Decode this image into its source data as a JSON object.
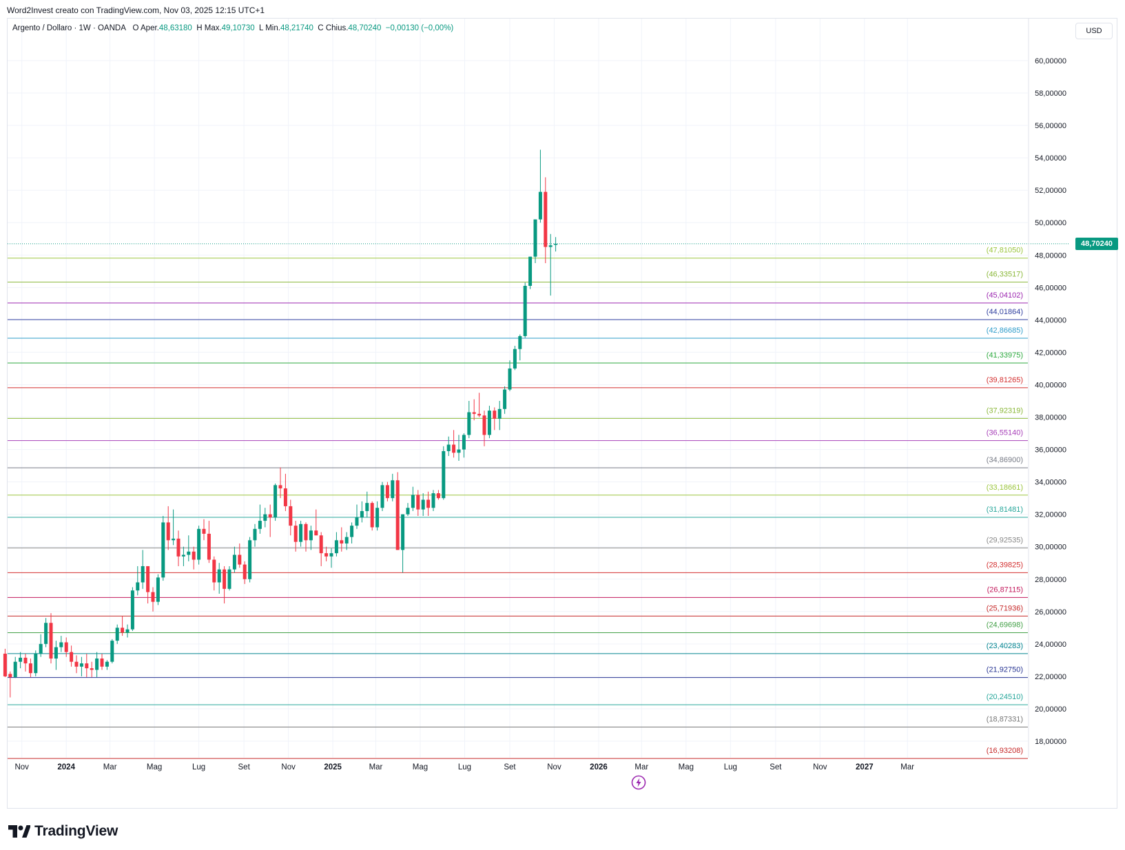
{
  "header": {
    "credit": "Word2Invest creato con TradingView.com, Nov 03, 2025 12:15 UTC+1"
  },
  "legend": {
    "symbol": "Argento / Dollaro · 1W · OANDA",
    "open_label": "O",
    "open_prefix": "Aper.",
    "open_value": "48,63180",
    "high_label": "H",
    "high_prefix": "Max.",
    "high_value": "49,10730",
    "low_label": "L",
    "low_prefix": "Min.",
    "low_value": "48,21740",
    "close_label": "C",
    "close_prefix": "Chius.",
    "close_value": "48,70240",
    "change": "−0,00130 (−0,00%)"
  },
  "price_axis": {
    "currency": "USD",
    "last_price": "48,70240",
    "last_price_color": "#089981"
  },
  "footer": {
    "brand": "TradingView"
  },
  "colors": {
    "up": "#089981",
    "down": "#f23645",
    "grid": "#f0f3fa"
  },
  "chart_data": {
    "type": "candlestick",
    "symbol": "Argento / Dollaro",
    "interval": "1W",
    "ylim": [
      16.8,
      62.0
    ],
    "y_ticks": [
      {
        "value": 18,
        "label": "18,00000"
      },
      {
        "value": 20,
        "label": "20,00000"
      },
      {
        "value": 22,
        "label": "22,00000"
      },
      {
        "value": 24,
        "label": "24,00000"
      },
      {
        "value": 26,
        "label": "26,00000"
      },
      {
        "value": 28,
        "label": "28,00000"
      },
      {
        "value": 30,
        "label": "30,00000"
      },
      {
        "value": 32,
        "label": "32,00000"
      },
      {
        "value": 34,
        "label": "34,00000"
      },
      {
        "value": 36,
        "label": "36,00000"
      },
      {
        "value": 38,
        "label": "38,00000"
      },
      {
        "value": 40,
        "label": "40,00000"
      },
      {
        "value": 42,
        "label": "42,00000"
      },
      {
        "value": 44,
        "label": "44,00000"
      },
      {
        "value": 46,
        "label": "46,00000"
      },
      {
        "value": 48,
        "label": "48,00000"
      },
      {
        "value": 50,
        "label": "50,00000"
      },
      {
        "value": 52,
        "label": "52,00000"
      },
      {
        "value": 54,
        "label": "54,00000"
      },
      {
        "value": 56,
        "label": "56,00000"
      },
      {
        "value": 58,
        "label": "58,00000"
      },
      {
        "value": 60,
        "label": "60,00000"
      }
    ],
    "x_labels": [
      {
        "label": "Nov",
        "date": "2023-11-01",
        "bold": false
      },
      {
        "label": "2024",
        "date": "2024-01-01",
        "bold": true
      },
      {
        "label": "Mar",
        "date": "2024-03-01",
        "bold": false
      },
      {
        "label": "Mag",
        "date": "2024-05-01",
        "bold": false
      },
      {
        "label": "Lug",
        "date": "2024-07-01",
        "bold": false
      },
      {
        "label": "Set",
        "date": "2024-09-01",
        "bold": false
      },
      {
        "label": "Nov",
        "date": "2024-11-01",
        "bold": false
      },
      {
        "label": "2025",
        "date": "2025-01-01",
        "bold": true
      },
      {
        "label": "Mar",
        "date": "2025-03-01",
        "bold": false
      },
      {
        "label": "Mag",
        "date": "2025-05-01",
        "bold": false
      },
      {
        "label": "Lug",
        "date": "2025-07-01",
        "bold": false
      },
      {
        "label": "Set",
        "date": "2025-09-01",
        "bold": false
      },
      {
        "label": "Nov",
        "date": "2025-11-01",
        "bold": false
      },
      {
        "label": "2026",
        "date": "2026-01-01",
        "bold": true
      },
      {
        "label": "Mar",
        "date": "2026-03-01",
        "bold": false
      },
      {
        "label": "Mag",
        "date": "2026-05-01",
        "bold": false
      },
      {
        "label": "Lug",
        "date": "2026-07-01",
        "bold": false
      },
      {
        "label": "Set",
        "date": "2026-09-01",
        "bold": false
      },
      {
        "label": "Nov",
        "date": "2026-11-01",
        "bold": false
      },
      {
        "label": "2027",
        "date": "2027-01-01",
        "bold": true
      },
      {
        "label": "Mar",
        "date": "2027-03-01",
        "bold": false
      }
    ],
    "horizontal_levels": [
      {
        "value": 47.8105,
        "label": "(47,81050)",
        "color": "#9bc53d"
      },
      {
        "value": 46.33517,
        "label": "(46,33517)",
        "color": "#8bb83a"
      },
      {
        "value": 45.04102,
        "label": "(45,04102)",
        "color": "#9c27b0"
      },
      {
        "value": 44.01864,
        "label": "(44,01864)",
        "color": "#303f9f"
      },
      {
        "value": 42.86685,
        "label": "(42,86685)",
        "color": "#2e9cca"
      },
      {
        "value": 41.33975,
        "label": "(41,33975)",
        "color": "#2eaa3f"
      },
      {
        "value": 39.81265,
        "label": "(39,81265)",
        "color": "#d32f2f"
      },
      {
        "value": 37.92319,
        "label": "(37,92319)",
        "color": "#8bb83a"
      },
      {
        "value": 36.5514,
        "label": "(36,55140)",
        "color": "#a740b8"
      },
      {
        "value": 34.869,
        "label": "(34,86900)",
        "color": "#777b86"
      },
      {
        "value": 33.18661,
        "label": "(33,18661)",
        "color": "#9bc53d"
      },
      {
        "value": 31.81481,
        "label": "(31,81481)",
        "color": "#26a69a"
      },
      {
        "value": 29.92535,
        "label": "(29,92535)",
        "color": "#888888"
      },
      {
        "value": 28.39825,
        "label": "(28,39825)",
        "color": "#d32f2f"
      },
      {
        "value": 26.87115,
        "label": "(26,87115)",
        "color": "#c2185b"
      },
      {
        "value": 25.71936,
        "label": "(25,71936)",
        "color": "#c62828"
      },
      {
        "value": 24.69698,
        "label": "(24,69698)",
        "color": "#43a047"
      },
      {
        "value": 23.40283,
        "label": "(23,40283)",
        "color": "#00838f"
      },
      {
        "value": 21.9275,
        "label": "(21,92750)",
        "color": "#283593"
      },
      {
        "value": 20.2451,
        "label": "(20,24510)",
        "color": "#26a69a"
      },
      {
        "value": 18.87331,
        "label": "(18,87331)",
        "color": "#777777"
      },
      {
        "value": 16.93208,
        "label": "(16,93208)",
        "color": "#c62828"
      }
    ],
    "candles": [
      {
        "date": "2023-10-09",
        "o": 23.4,
        "h": 23.7,
        "l": 21.95,
        "c": 22.0
      },
      {
        "date": "2023-10-16",
        "o": 22.15,
        "h": 22.3,
        "l": 20.7,
        "c": 21.95
      },
      {
        "date": "2023-10-23",
        "o": 21.95,
        "h": 23.2,
        "l": 21.9,
        "c": 22.9
      },
      {
        "date": "2023-10-30",
        "o": 22.9,
        "h": 23.5,
        "l": 22.5,
        "c": 23.15
      },
      {
        "date": "2023-11-06",
        "o": 23.15,
        "h": 23.4,
        "l": 22.3,
        "c": 22.8
      },
      {
        "date": "2023-11-13",
        "o": 22.8,
        "h": 23.1,
        "l": 21.95,
        "c": 22.2
      },
      {
        "date": "2023-11-20",
        "o": 22.2,
        "h": 23.6,
        "l": 22.0,
        "c": 23.4
      },
      {
        "date": "2023-11-27",
        "o": 23.4,
        "h": 24.6,
        "l": 23.2,
        "c": 24.0
      },
      {
        "date": "2023-12-04",
        "o": 24.0,
        "h": 25.6,
        "l": 23.8,
        "c": 25.3
      },
      {
        "date": "2023-12-11",
        "o": 25.3,
        "h": 25.9,
        "l": 22.8,
        "c": 23.1
      },
      {
        "date": "2023-12-18",
        "o": 23.1,
        "h": 24.2,
        "l": 22.4,
        "c": 23.8
      },
      {
        "date": "2023-12-25",
        "o": 23.8,
        "h": 24.5,
        "l": 23.5,
        "c": 24.1
      },
      {
        "date": "2024-01-01",
        "o": 24.1,
        "h": 24.4,
        "l": 23.2,
        "c": 23.5
      },
      {
        "date": "2024-01-08",
        "o": 23.5,
        "h": 23.9,
        "l": 22.6,
        "c": 22.9
      },
      {
        "date": "2024-01-15",
        "o": 22.9,
        "h": 23.3,
        "l": 22.2,
        "c": 22.6
      },
      {
        "date": "2024-01-22",
        "o": 22.6,
        "h": 23.2,
        "l": 22.0,
        "c": 22.8
      },
      {
        "date": "2024-01-29",
        "o": 22.8,
        "h": 23.4,
        "l": 21.95,
        "c": 22.5
      },
      {
        "date": "2024-02-05",
        "o": 22.5,
        "h": 22.9,
        "l": 21.95,
        "c": 22.4
      },
      {
        "date": "2024-02-12",
        "o": 22.4,
        "h": 23.5,
        "l": 21.95,
        "c": 23.1
      },
      {
        "date": "2024-02-19",
        "o": 23.1,
        "h": 23.4,
        "l": 22.4,
        "c": 22.6
      },
      {
        "date": "2024-02-26",
        "o": 22.6,
        "h": 23.0,
        "l": 22.4,
        "c": 22.9
      },
      {
        "date": "2024-03-04",
        "o": 22.9,
        "h": 24.3,
        "l": 22.8,
        "c": 24.2
      },
      {
        "date": "2024-03-11",
        "o": 24.2,
        "h": 25.2,
        "l": 24.0,
        "c": 25.0
      },
      {
        "date": "2024-03-18",
        "o": 25.0,
        "h": 25.7,
        "l": 24.5,
        "c": 24.7
      },
      {
        "date": "2024-03-25",
        "o": 24.7,
        "h": 25.2,
        "l": 24.4,
        "c": 24.9
      },
      {
        "date": "2024-04-01",
        "o": 24.9,
        "h": 27.5,
        "l": 24.8,
        "c": 27.3
      },
      {
        "date": "2024-04-08",
        "o": 27.3,
        "h": 28.8,
        "l": 27.0,
        "c": 27.8
      },
      {
        "date": "2024-04-15",
        "o": 27.8,
        "h": 29.8,
        "l": 27.4,
        "c": 28.8
      },
      {
        "date": "2024-04-22",
        "o": 28.8,
        "h": 28.8,
        "l": 26.5,
        "c": 27.2
      },
      {
        "date": "2024-04-29",
        "o": 27.2,
        "h": 27.5,
        "l": 26.0,
        "c": 26.6
      },
      {
        "date": "2024-05-06",
        "o": 26.6,
        "h": 28.3,
        "l": 26.4,
        "c": 28.1
      },
      {
        "date": "2024-05-13",
        "o": 28.1,
        "h": 31.9,
        "l": 27.9,
        "c": 31.5
      },
      {
        "date": "2024-05-20",
        "o": 31.5,
        "h": 32.5,
        "l": 29.8,
        "c": 30.4
      },
      {
        "date": "2024-05-27",
        "o": 30.4,
        "h": 32.3,
        "l": 30.1,
        "c": 30.5
      },
      {
        "date": "2024-06-03",
        "o": 30.5,
        "h": 31.0,
        "l": 28.8,
        "c": 29.4
      },
      {
        "date": "2024-06-10",
        "o": 29.4,
        "h": 30.0,
        "l": 28.8,
        "c": 29.5
      },
      {
        "date": "2024-06-17",
        "o": 29.5,
        "h": 30.7,
        "l": 29.1,
        "c": 29.7
      },
      {
        "date": "2024-06-24",
        "o": 29.7,
        "h": 30.0,
        "l": 28.6,
        "c": 29.2
      },
      {
        "date": "2024-07-01",
        "o": 29.2,
        "h": 31.3,
        "l": 28.9,
        "c": 31.1
      },
      {
        "date": "2024-07-08",
        "o": 31.1,
        "h": 31.7,
        "l": 30.4,
        "c": 30.8
      },
      {
        "date": "2024-07-15",
        "o": 30.8,
        "h": 31.6,
        "l": 29.0,
        "c": 29.2
      },
      {
        "date": "2024-07-22",
        "o": 29.2,
        "h": 29.4,
        "l": 27.3,
        "c": 27.8
      },
      {
        "date": "2024-07-29",
        "o": 27.8,
        "h": 29.0,
        "l": 27.1,
        "c": 28.6
      },
      {
        "date": "2024-08-05",
        "o": 28.6,
        "h": 28.8,
        "l": 26.5,
        "c": 27.4
      },
      {
        "date": "2024-08-12",
        "o": 27.4,
        "h": 28.8,
        "l": 27.3,
        "c": 28.6
      },
      {
        "date": "2024-08-19",
        "o": 28.6,
        "h": 30.0,
        "l": 28.4,
        "c": 29.5
      },
      {
        "date": "2024-08-26",
        "o": 29.5,
        "h": 30.2,
        "l": 28.7,
        "c": 28.9
      },
      {
        "date": "2024-09-02",
        "o": 28.9,
        "h": 29.1,
        "l": 27.7,
        "c": 28.0
      },
      {
        "date": "2024-09-09",
        "o": 28.0,
        "h": 30.6,
        "l": 27.8,
        "c": 30.4
      },
      {
        "date": "2024-09-16",
        "o": 30.4,
        "h": 31.4,
        "l": 30.0,
        "c": 31.1
      },
      {
        "date": "2024-09-23",
        "o": 31.1,
        "h": 32.6,
        "l": 30.8,
        "c": 31.6
      },
      {
        "date": "2024-09-30",
        "o": 31.6,
        "h": 32.4,
        "l": 31.2,
        "c": 32.0
      },
      {
        "date": "2024-10-07",
        "o": 32.0,
        "h": 32.6,
        "l": 30.6,
        "c": 31.8
      },
      {
        "date": "2024-10-14",
        "o": 31.8,
        "h": 33.9,
        "l": 31.6,
        "c": 33.8
      },
      {
        "date": "2024-10-21",
        "o": 33.8,
        "h": 34.9,
        "l": 33.0,
        "c": 33.6
      },
      {
        "date": "2024-10-28",
        "o": 33.6,
        "h": 34.5,
        "l": 32.2,
        "c": 32.5
      },
      {
        "date": "2024-11-04",
        "o": 32.5,
        "h": 32.9,
        "l": 30.7,
        "c": 31.3
      },
      {
        "date": "2024-11-11",
        "o": 31.3,
        "h": 31.6,
        "l": 29.7,
        "c": 30.3
      },
      {
        "date": "2024-11-18",
        "o": 30.3,
        "h": 31.6,
        "l": 30.0,
        "c": 31.4
      },
      {
        "date": "2024-11-25",
        "o": 31.4,
        "h": 31.5,
        "l": 29.7,
        "c": 30.4
      },
      {
        "date": "2024-12-02",
        "o": 30.4,
        "h": 31.3,
        "l": 29.8,
        "c": 31.0
      },
      {
        "date": "2024-12-09",
        "o": 31.0,
        "h": 32.3,
        "l": 30.7,
        "c": 30.7
      },
      {
        "date": "2024-12-16",
        "o": 30.7,
        "h": 30.9,
        "l": 28.8,
        "c": 29.6
      },
      {
        "date": "2024-12-23",
        "o": 29.6,
        "h": 30.0,
        "l": 29.1,
        "c": 29.4
      },
      {
        "date": "2024-12-30",
        "o": 29.4,
        "h": 29.9,
        "l": 28.7,
        "c": 29.6
      },
      {
        "date": "2025-01-06",
        "o": 29.6,
        "h": 30.9,
        "l": 29.4,
        "c": 30.4
      },
      {
        "date": "2025-01-13",
        "o": 30.4,
        "h": 31.2,
        "l": 29.7,
        "c": 30.2
      },
      {
        "date": "2025-01-20",
        "o": 30.2,
        "h": 30.9,
        "l": 29.8,
        "c": 30.6
      },
      {
        "date": "2025-01-27",
        "o": 30.6,
        "h": 31.5,
        "l": 30.2,
        "c": 31.3
      },
      {
        "date": "2025-02-03",
        "o": 31.3,
        "h": 32.6,
        "l": 31.1,
        "c": 31.8
      },
      {
        "date": "2025-02-10",
        "o": 31.8,
        "h": 32.8,
        "l": 31.5,
        "c": 32.2
      },
      {
        "date": "2025-02-17",
        "o": 32.2,
        "h": 33.4,
        "l": 31.8,
        "c": 32.7
      },
      {
        "date": "2025-02-24",
        "o": 32.7,
        "h": 32.8,
        "l": 31.0,
        "c": 31.2
      },
      {
        "date": "2025-03-03",
        "o": 31.2,
        "h": 32.8,
        "l": 31.0,
        "c": 32.4
      },
      {
        "date": "2025-03-10",
        "o": 32.4,
        "h": 34.0,
        "l": 32.2,
        "c": 33.8
      },
      {
        "date": "2025-03-17",
        "o": 33.8,
        "h": 34.0,
        "l": 32.8,
        "c": 33.0
      },
      {
        "date": "2025-03-24",
        "o": 33.0,
        "h": 34.5,
        "l": 32.8,
        "c": 34.1
      },
      {
        "date": "2025-03-31",
        "o": 34.1,
        "h": 34.6,
        "l": 29.8,
        "c": 29.8
      },
      {
        "date": "2025-04-07",
        "o": 29.8,
        "h": 32.0,
        "l": 28.4,
        "c": 32.0
      },
      {
        "date": "2025-04-14",
        "o": 32.0,
        "h": 32.7,
        "l": 31.9,
        "c": 32.4
      },
      {
        "date": "2025-04-21",
        "o": 32.4,
        "h": 33.7,
        "l": 32.2,
        "c": 33.2
      },
      {
        "date": "2025-04-28",
        "o": 33.2,
        "h": 33.5,
        "l": 31.9,
        "c": 32.3
      },
      {
        "date": "2025-05-05",
        "o": 32.3,
        "h": 33.3,
        "l": 31.9,
        "c": 32.9
      },
      {
        "date": "2025-05-12",
        "o": 32.9,
        "h": 33.4,
        "l": 31.9,
        "c": 32.4
      },
      {
        "date": "2025-05-19",
        "o": 32.4,
        "h": 33.5,
        "l": 32.2,
        "c": 33.3
      },
      {
        "date": "2025-05-26",
        "o": 33.3,
        "h": 33.5,
        "l": 32.9,
        "c": 33.0
      },
      {
        "date": "2025-06-02",
        "o": 33.0,
        "h": 36.2,
        "l": 32.9,
        "c": 35.9
      },
      {
        "date": "2025-06-09",
        "o": 35.9,
        "h": 36.8,
        "l": 35.6,
        "c": 36.3
      },
      {
        "date": "2025-06-16",
        "o": 36.3,
        "h": 37.2,
        "l": 35.5,
        "c": 35.8
      },
      {
        "date": "2025-06-23",
        "o": 35.8,
        "h": 36.9,
        "l": 35.3,
        "c": 36.0
      },
      {
        "date": "2025-06-30",
        "o": 36.0,
        "h": 37.0,
        "l": 35.5,
        "c": 36.9
      },
      {
        "date": "2025-07-07",
        "o": 36.9,
        "h": 39.0,
        "l": 36.7,
        "c": 38.3
      },
      {
        "date": "2025-07-14",
        "o": 38.3,
        "h": 39.1,
        "l": 37.8,
        "c": 38.2
      },
      {
        "date": "2025-07-21",
        "o": 38.2,
        "h": 39.5,
        "l": 38.0,
        "c": 38.1
      },
      {
        "date": "2025-07-28",
        "o": 38.1,
        "h": 38.4,
        "l": 36.2,
        "c": 36.9
      },
      {
        "date": "2025-08-04",
        "o": 36.9,
        "h": 38.7,
        "l": 36.7,
        "c": 38.4
      },
      {
        "date": "2025-08-11",
        "o": 38.4,
        "h": 38.6,
        "l": 37.2,
        "c": 37.9
      },
      {
        "date": "2025-08-18",
        "o": 37.9,
        "h": 39.0,
        "l": 37.2,
        "c": 38.5
      },
      {
        "date": "2025-08-25",
        "o": 38.5,
        "h": 39.9,
        "l": 38.2,
        "c": 39.7
      },
      {
        "date": "2025-09-01",
        "o": 39.7,
        "h": 41.5,
        "l": 39.6,
        "c": 41.0
      },
      {
        "date": "2025-09-08",
        "o": 41.0,
        "h": 42.4,
        "l": 40.9,
        "c": 42.2
      },
      {
        "date": "2025-09-15",
        "o": 42.2,
        "h": 43.1,
        "l": 41.5,
        "c": 43.0
      },
      {
        "date": "2025-09-22",
        "o": 43.0,
        "h": 46.3,
        "l": 42.9,
        "c": 46.1
      },
      {
        "date": "2025-09-29",
        "o": 46.1,
        "h": 47.9,
        "l": 45.9,
        "c": 47.9
      },
      {
        "date": "2025-10-06",
        "o": 47.9,
        "h": 50.2,
        "l": 47.5,
        "c": 50.2
      },
      {
        "date": "2025-10-13",
        "o": 50.2,
        "h": 54.5,
        "l": 50.0,
        "c": 51.9
      },
      {
        "date": "2025-10-20",
        "o": 51.9,
        "h": 52.8,
        "l": 47.5,
        "c": 48.5
      },
      {
        "date": "2025-10-27",
        "o": 48.5,
        "h": 49.3,
        "l": 45.5,
        "c": 48.6
      },
      {
        "date": "2025-11-03",
        "o": 48.63,
        "h": 49.11,
        "l": 48.22,
        "c": 48.7
      }
    ]
  }
}
